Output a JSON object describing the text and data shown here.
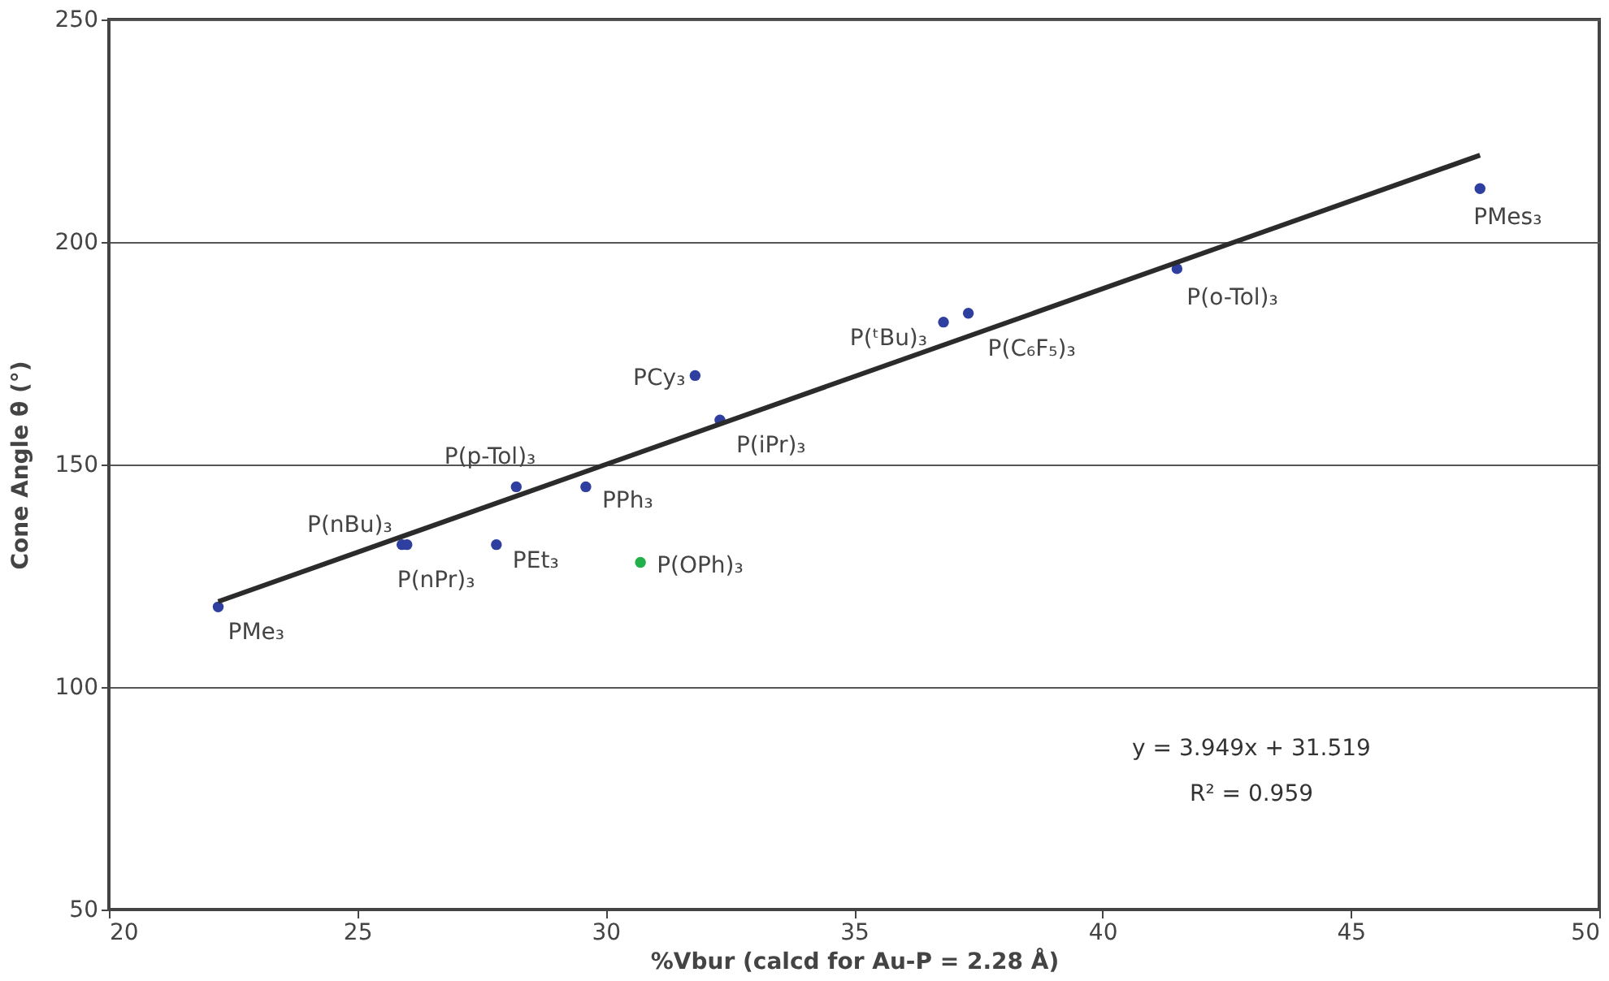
{
  "chart_data": {
    "type": "scatter",
    "xlabel": "%Vbur (calcd for Au-P = 2.28 Å)",
    "ylabel": "Cone Angle θ (°)",
    "xlim": [
      20,
      50
    ],
    "xticks": [
      20,
      25,
      30,
      35,
      40,
      45,
      50
    ],
    "ylim": [
      50,
      250
    ],
    "yticks": [
      50,
      100,
      150,
      200,
      250
    ],
    "grid": "y",
    "marker": "circle",
    "series": [
      {
        "type": "scatter",
        "x": [
          22.2,
          25.9,
          26.0,
          27.8,
          28.2,
          29.6,
          31.8,
          32.3,
          30.7,
          36.8,
          37.3,
          41.5,
          47.6
        ],
        "values": [
          118,
          132,
          132,
          132,
          145,
          145,
          170,
          160,
          128,
          182,
          184,
          194,
          212
        ],
        "colors": [
          "#2e3fa0",
          "#2e3fa0",
          "#2e3fa0",
          "#2e3fa0",
          "#2e3fa0",
          "#2e3fa0",
          "#2e3fa0",
          "#2e3fa0",
          "#22b04a",
          "#2e3fa0",
          "#2e3fa0",
          "#2e3fa0",
          "#2e3fa0"
        ]
      },
      {
        "type": "line",
        "color": "#2b2b2b",
        "line_style": "solid",
        "marker": "none",
        "x": [
          22.2,
          47.6
        ],
        "values": [
          119.2,
          219.5
        ]
      }
    ],
    "annotations": [
      {
        "text": "PMe₃",
        "x": 22.2,
        "y": 118
      },
      {
        "text": "P(nBu)₃",
        "x": 25.9,
        "y": 132
      },
      {
        "text": "P(nPr)₃",
        "x": 26.0,
        "y": 132
      },
      {
        "text": "PEt₃",
        "x": 27.8,
        "y": 132
      },
      {
        "text": "P(p-Tol)₃",
        "x": 28.2,
        "y": 145
      },
      {
        "text": "PPh₃",
        "x": 29.6,
        "y": 145
      },
      {
        "text": "PCy₃",
        "x": 31.8,
        "y": 170
      },
      {
        "text": "P(iPr)₃",
        "x": 32.3,
        "y": 160
      },
      {
        "text": "P(OPh)₃",
        "x": 30.7,
        "y": 128
      },
      {
        "text": "P(ᵗBu)₃",
        "x": 36.8,
        "y": 182
      },
      {
        "text": "P(C₆F₅)₃",
        "x": 37.3,
        "y": 184
      },
      {
        "text": "P(o-Tol)₃",
        "x": 41.5,
        "y": 194
      },
      {
        "text": "PMes₃",
        "x": 47.6,
        "y": 212
      },
      "y = 3.949x + 31.519",
      "R² = 0.959"
    ]
  }
}
